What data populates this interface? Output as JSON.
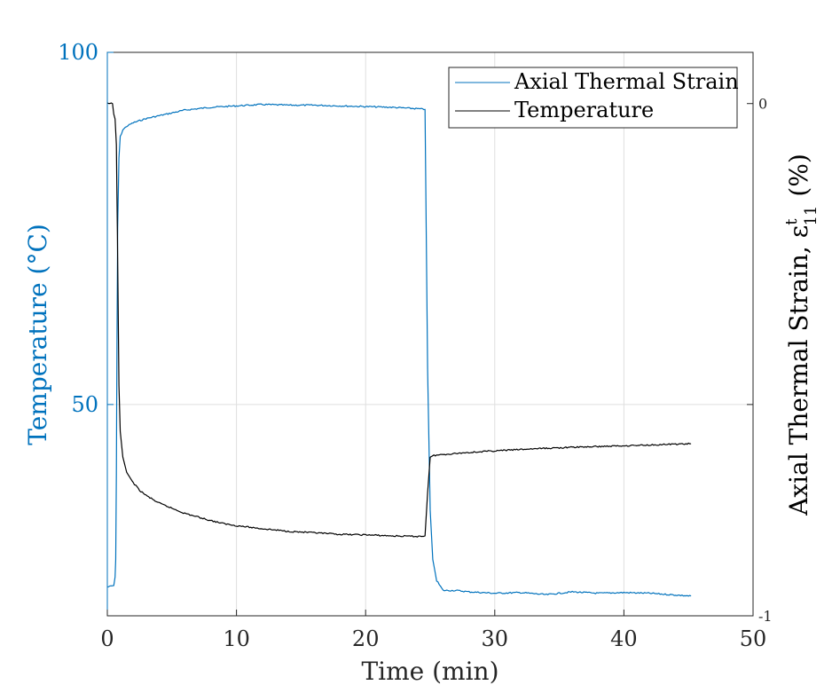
{
  "chart_data": {
    "type": "line",
    "xlabel": "Time (min)",
    "ylabel_left": "Temperature (°C)",
    "ylabel_right": "Axial Thermal Strain, ε",
    "ylabel_right_sup": "t",
    "ylabel_right_sub": "11",
    "ylabel_right_unit": "(%)",
    "xlim": [
      0,
      50
    ],
    "ylim_left": [
      20,
      100
    ],
    "ylim_right": [
      -1,
      0.1
    ],
    "x_ticks": [
      "0",
      "10",
      "20",
      "30",
      "40",
      "50"
    ],
    "y_left_ticks": [
      "50",
      "100"
    ],
    "y_right_ticks": [
      "0",
      "-1"
    ],
    "grid": true,
    "legend_position": "top-right",
    "colors": {
      "strain": "#0072BD",
      "temperature": "#000000",
      "axis_left": "#0072BD",
      "axis": "#262626",
      "grid": "#DFDFDF"
    },
    "series": [
      {
        "name": "Axial Thermal Strain",
        "axis": "left",
        "x": [
          0,
          0.3,
          0.5,
          0.6,
          0.65,
          0.7,
          0.75,
          0.8,
          0.9,
          1.0,
          1.2,
          1.5,
          2,
          3,
          4,
          5,
          6,
          8,
          10,
          12,
          14,
          16,
          18,
          20,
          22,
          24,
          24.6,
          24.8,
          25.0,
          25.2,
          25.5,
          26,
          27,
          28,
          30,
          32,
          34,
          36,
          38,
          40,
          42,
          45.2
        ],
        "y": [
          24.1,
          24.2,
          24.3,
          25.5,
          28.0,
          40.0,
          60.0,
          75.0,
          85.0,
          88.0,
          89.0,
          89.5,
          90.0,
          90.6,
          91.0,
          91.4,
          91.8,
          92.2,
          92.4,
          92.6,
          92.5,
          92.5,
          92.4,
          92.3,
          92.2,
          92.0,
          91.9,
          55.0,
          35.0,
          28.0,
          25.0,
          23.6,
          23.6,
          23.4,
          23.2,
          23.3,
          23.0,
          23.4,
          23.2,
          23.3,
          23.2,
          22.8
        ]
      },
      {
        "name": "Temperature",
        "axis": "right",
        "x": [
          0,
          0.4,
          0.5,
          0.6,
          0.7,
          0.8,
          0.9,
          1.0,
          1.2,
          1.5,
          2,
          2.5,
          3,
          4,
          5,
          6,
          7,
          8,
          9,
          10,
          12,
          14,
          16,
          18,
          20,
          22,
          24,
          24.6,
          24.8,
          25.0,
          25.3,
          26,
          28,
          30,
          33,
          36,
          40,
          45.2
        ],
        "y": [
          0.0,
          0.0,
          -0.02,
          -0.03,
          -0.08,
          -0.3,
          -0.55,
          -0.64,
          -0.69,
          -0.72,
          -0.74,
          -0.755,
          -0.765,
          -0.78,
          -0.79,
          -0.8,
          -0.807,
          -0.814,
          -0.82,
          -0.824,
          -0.83,
          -0.835,
          -0.838,
          -0.841,
          -0.842,
          -0.844,
          -0.845,
          -0.844,
          -0.76,
          -0.69,
          -0.687,
          -0.685,
          -0.681,
          -0.678,
          -0.674,
          -0.671,
          -0.668,
          -0.664
        ]
      }
    ]
  }
}
